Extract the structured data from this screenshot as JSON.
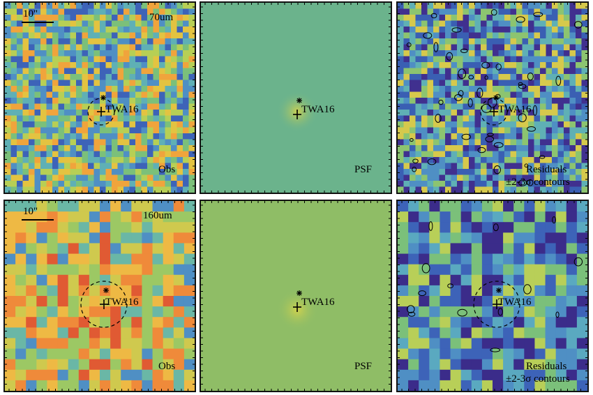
{
  "figure": {
    "rows": [
      {
        "band": "70um",
        "scalebar": "10\"",
        "target": "TWA16",
        "grid_cells": 32,
        "panels": [
          {
            "key": "obs",
            "label": "Obs",
            "style": "noise",
            "palette": "obs70"
          },
          {
            "key": "psf",
            "label": "PSF",
            "style": "flat",
            "background": "#6bb38c"
          },
          {
            "key": "res",
            "label_line1": "Residuals",
            "label_line2": "±2-3σ contours",
            "style": "noise",
            "palette": "res70"
          }
        ]
      },
      {
        "band": "160um",
        "scalebar": "10\"",
        "target": "TWA16",
        "grid_cells": 18,
        "panels": [
          {
            "key": "obs",
            "label": "Obs",
            "style": "noise",
            "palette": "obs160"
          },
          {
            "key": "psf",
            "label": "PSF",
            "style": "flat",
            "background": "#8fbd66"
          },
          {
            "key": "res",
            "label_line1": "Residuals",
            "label_line2": "±2-3σ contours",
            "style": "noise",
            "palette": "res160"
          }
        ]
      }
    ],
    "palettes": {
      "obs70": [
        "#3d63b8",
        "#4f8fc4",
        "#5fb0b5",
        "#7bc07a",
        "#b7cf55",
        "#e3c341",
        "#f0a43c"
      ],
      "res70": [
        "#40308f",
        "#3a5fb3",
        "#4f8fc4",
        "#5fb0b5",
        "#8cc470",
        "#d6c94c"
      ],
      "obs160": [
        "#4f8fc4",
        "#6ab7a6",
        "#9cc864",
        "#cfc94e",
        "#eeb944",
        "#ef8a3a",
        "#e05a33"
      ],
      "res160": [
        "#3b2c8a",
        "#3d63b8",
        "#4f8fc4",
        "#5aa9c0",
        "#7bc07a",
        "#b8cf58"
      ]
    }
  }
}
